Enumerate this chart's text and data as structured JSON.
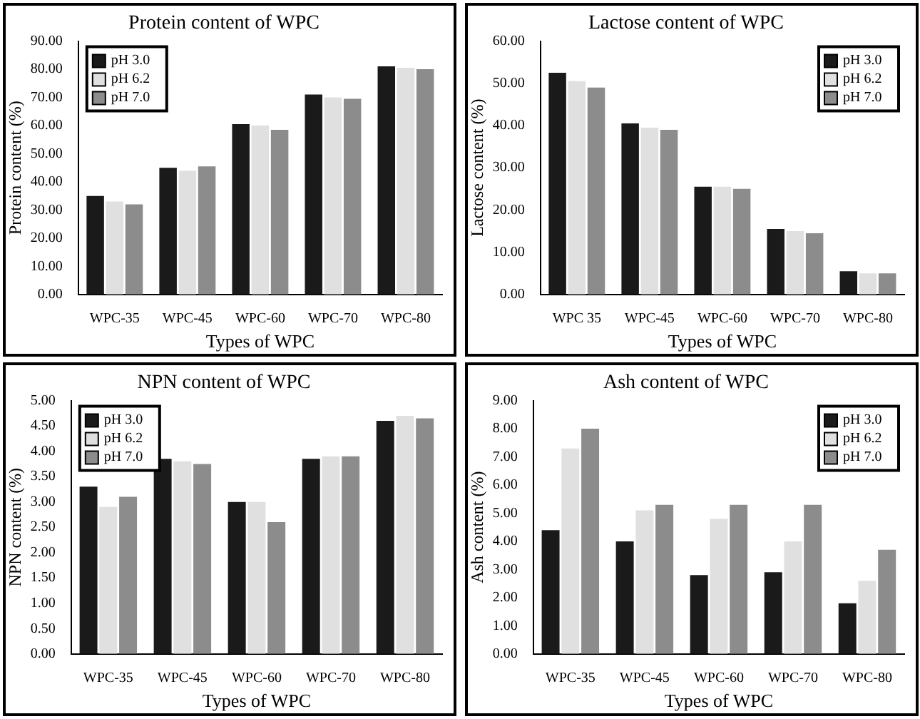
{
  "chart_data": [
    {
      "type": "bar",
      "title": "Protein content of WPC",
      "xlabel": "Types of WPC",
      "ylabel": "Protein content (%)",
      "categories": [
        "WPC-35",
        "WPC-45",
        "WPC-60",
        "WPC-70",
        "WPC-80"
      ],
      "series": [
        {
          "name": "pH 3.0",
          "color": "#1a1a1a",
          "values": [
            35,
            45,
            60.5,
            71,
            81
          ]
        },
        {
          "name": "pH 6.2",
          "color": "#e0e0e0",
          "values": [
            33,
            44,
            60,
            70,
            80.5
          ]
        },
        {
          "name": "pH 7.0",
          "color": "#8c8c8c",
          "values": [
            32,
            45.5,
            58.5,
            69.5,
            80
          ]
        }
      ],
      "ylim": [
        0,
        90
      ],
      "yticks": [
        {
          "value": 0,
          "label": "0.00"
        },
        {
          "value": 10,
          "label": "10.00"
        },
        {
          "value": 20,
          "label": "20.00"
        },
        {
          "value": 30,
          "label": "30.00"
        },
        {
          "value": 40,
          "label": "40.00"
        },
        {
          "value": 50,
          "label": "50.00"
        },
        {
          "value": 60,
          "label": "60.00"
        },
        {
          "value": 70,
          "label": "70.00"
        },
        {
          "value": 80,
          "label": "80.00"
        },
        {
          "value": 90,
          "label": "90.00"
        }
      ],
      "grid": false,
      "legend": "top left"
    },
    {
      "type": "bar",
      "title": "Lactose content of WPC",
      "xlabel": "Types of WPC",
      "ylabel": "Lactose content (%)",
      "categories": [
        "WPC 35",
        "WPC-45",
        "WPC-60",
        "WPC-70",
        "WPC-80"
      ],
      "series": [
        {
          "name": "pH 3.0",
          "color": "#1a1a1a",
          "values": [
            52.5,
            40.5,
            25.5,
            15.5,
            5.5
          ]
        },
        {
          "name": "pH 6.2",
          "color": "#e0e0e0",
          "values": [
            50.5,
            39.5,
            25.5,
            15,
            5
          ]
        },
        {
          "name": "pH 7.0",
          "color": "#8c8c8c",
          "values": [
            49,
            39,
            25,
            14.5,
            5
          ]
        }
      ],
      "ylim": [
        0,
        60
      ],
      "yticks": [
        {
          "value": 0,
          "label": "0.00"
        },
        {
          "value": 10,
          "label": "10.00"
        },
        {
          "value": 20,
          "label": "20.00"
        },
        {
          "value": 30,
          "label": "30.00"
        },
        {
          "value": 40,
          "label": "40.00"
        },
        {
          "value": 50,
          "label": "50.00"
        },
        {
          "value": 60,
          "label": "60.00"
        }
      ],
      "grid": false,
      "legend": "top right"
    },
    {
      "type": "bar",
      "title": "NPN content of WPC",
      "xlabel": "Types of WPC",
      "ylabel": "NPN content (%)",
      "categories": [
        "WPC-35",
        "WPC-45",
        "WPC-60",
        "WPC-70",
        "WPC-80"
      ],
      "series": [
        {
          "name": "pH 3.0",
          "color": "#1a1a1a",
          "values": [
            3.3,
            3.85,
            3.0,
            3.85,
            4.6
          ]
        },
        {
          "name": "pH 6.2",
          "color": "#e0e0e0",
          "values": [
            2.9,
            3.8,
            3.0,
            3.9,
            4.7
          ]
        },
        {
          "name": "pH 7.0",
          "color": "#8c8c8c",
          "values": [
            3.1,
            3.75,
            2.6,
            3.9,
            4.65
          ]
        }
      ],
      "ylim": [
        0,
        5
      ],
      "yticks": [
        {
          "value": 0,
          "label": "0.00"
        },
        {
          "value": 0.5,
          "label": "0.50"
        },
        {
          "value": 1,
          "label": "1.00"
        },
        {
          "value": 1.5,
          "label": "1.50"
        },
        {
          "value": 2,
          "label": "2.00"
        },
        {
          "value": 2.5,
          "label": "2.50"
        },
        {
          "value": 3,
          "label": "3.00"
        },
        {
          "value": 3.5,
          "label": "3.50"
        },
        {
          "value": 4,
          "label": "4.00"
        },
        {
          "value": 4.5,
          "label": "4.50"
        },
        {
          "value": 5,
          "label": "5.00"
        }
      ],
      "grid": false,
      "legend": "top left"
    },
    {
      "type": "bar",
      "title": "Ash content of WPC",
      "xlabel": "Types of WPC",
      "ylabel": "Ash content (%)",
      "categories": [
        "WPC-35",
        "WPC-45",
        "WPC-60",
        "WPC-70",
        "WPC-80"
      ],
      "series": [
        {
          "name": "pH 3.0",
          "color": "#1a1a1a",
          "values": [
            4.4,
            4.0,
            2.8,
            2.9,
            1.8
          ]
        },
        {
          "name": "pH 6.2",
          "color": "#e0e0e0",
          "values": [
            7.3,
            5.1,
            4.8,
            4.0,
            2.6
          ]
        },
        {
          "name": "pH 7.0",
          "color": "#8c8c8c",
          "values": [
            8.0,
            5.3,
            5.3,
            5.3,
            3.7
          ]
        }
      ],
      "ylim": [
        0,
        9
      ],
      "yticks": [
        {
          "value": 0,
          "label": "0.00"
        },
        {
          "value": 1,
          "label": "1.00"
        },
        {
          "value": 2,
          "label": "2.00"
        },
        {
          "value": 3,
          "label": "3.00"
        },
        {
          "value": 4,
          "label": "4.00"
        },
        {
          "value": 5,
          "label": "5.00"
        },
        {
          "value": 6,
          "label": "6.00"
        },
        {
          "value": 7,
          "label": "7.00"
        },
        {
          "value": 8,
          "label": "8.00"
        },
        {
          "value": 9,
          "label": "9.00"
        }
      ],
      "grid": false,
      "legend": "top right"
    }
  ]
}
